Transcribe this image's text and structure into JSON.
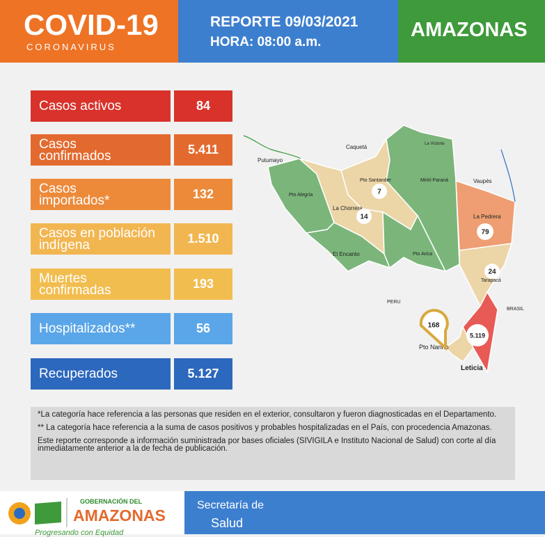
{
  "header": {
    "title": "COVID-19",
    "subtitle": "CORONAVIRUS",
    "report": "REPORTE 09/03/2021",
    "time": "HORA: 08:00 a.m.",
    "region": "AMAZONAS"
  },
  "stats": [
    {
      "label_lines": [
        "Casos activos"
      ],
      "value": "84"
    },
    {
      "label_lines": [
        "Casos",
        "confirmados"
      ],
      "value": "5.411"
    },
    {
      "label_lines": [
        "Casos",
        "importados*"
      ],
      "value": "132"
    },
    {
      "label_lines": [
        "Casos en población",
        "indígena"
      ],
      "value": "1.510"
    },
    {
      "label_lines": [
        "Muertes",
        "confirmadas"
      ],
      "value": "193"
    },
    {
      "label_lines": [
        "Hospitalizados**"
      ],
      "value": "56"
    },
    {
      "label_lines": [
        "Recuperados"
      ],
      "value": "5.127"
    }
  ],
  "map": {
    "places": [
      "Caquetá",
      "Putumayo",
      "La Victoria",
      "Vaupés",
      "Pto Santander",
      "Mirití-Paraná",
      "Pto Alegría",
      "La Chorrera",
      "La Pedrera",
      "El Encanto",
      "Pto Arica",
      "Tarapacá",
      "PERU",
      "BRASIL",
      "Pto Nariño",
      "Leticia"
    ],
    "counts": {
      "pto_santander": "7",
      "la_chorrera": "14",
      "la_pedrera": "79",
      "tarapaca": "24",
      "pto_narino": "168",
      "leticia": "5.119"
    }
  },
  "notes": [
    "*La categoría hace referencia a las personas que residen en el exterior, consultaron y fueron diagnosticadas en el Departamento.",
    "** La categoría hace referencia a la suma de casos positivos y probables hospitalizadas en el País, con procedencia Amazonas.",
    "Este reporte corresponde a información suministrada por bases oficiales (SIVIGILA e Instituto Nacional de Salud) con corte al día inmediatamente anterior a la de fecha de publicación."
  ],
  "footer": {
    "gov_small": "GOBERNACIÓN DEL",
    "gov_big": "AMAZONAS",
    "slogan": "Progresando con Equidad",
    "secretaria": "Secretaría de",
    "salud": "Salud"
  }
}
